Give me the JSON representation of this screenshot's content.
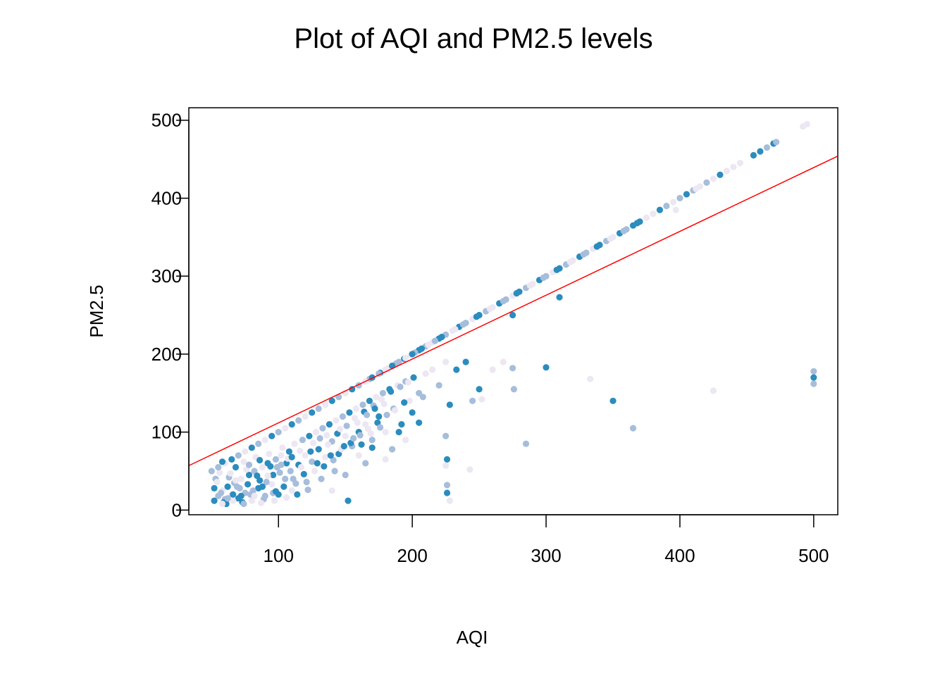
{
  "chart_data": {
    "type": "scatter",
    "title": "Plot of AQI and PM2.5 levels",
    "xlabel": "AQI",
    "ylabel": "PM2.5",
    "xlim": [
      33,
      518
    ],
    "ylim": [
      -6,
      516
    ],
    "x_ticks": [
      100,
      200,
      300,
      400,
      500
    ],
    "y_ticks": [
      0,
      100,
      200,
      300,
      400,
      500
    ],
    "grid": false,
    "legend": "none",
    "colors": [
      "#2b8cbe",
      "#a6bddb",
      "#ece7f2"
    ],
    "trend_line": {
      "color": "#ff0000",
      "x": [
        33,
        518
      ],
      "y": [
        57,
        454
      ]
    },
    "points": [
      [
        52,
        12,
        0
      ],
      [
        55,
        18,
        1
      ],
      [
        58,
        25,
        2
      ],
      [
        60,
        14,
        1
      ],
      [
        62,
        30,
        0
      ],
      [
        65,
        20,
        2
      ],
      [
        67,
        35,
        1
      ],
      [
        70,
        15,
        0
      ],
      [
        72,
        40,
        2
      ],
      [
        75,
        22,
        1
      ],
      [
        78,
        45,
        0
      ],
      [
        80,
        12,
        2
      ],
      [
        82,
        50,
        1
      ],
      [
        85,
        28,
        0
      ],
      [
        88,
        55,
        2
      ],
      [
        90,
        18,
        1
      ],
      [
        92,
        60,
        0
      ],
      [
        95,
        33,
        2
      ],
      [
        98,
        65,
        1
      ],
      [
        100,
        20,
        0
      ],
      [
        102,
        70,
        2
      ],
      [
        105,
        40,
        1
      ],
      [
        108,
        75,
        0
      ],
      [
        110,
        25,
        2
      ],
      [
        53,
        40,
        1
      ],
      [
        56,
        48,
        2
      ],
      [
        59,
        10,
        0
      ],
      [
        63,
        42,
        1
      ],
      [
        66,
        12,
        2
      ],
      [
        68,
        55,
        0
      ],
      [
        71,
        28,
        1
      ],
      [
        74,
        62,
        2
      ],
      [
        77,
        33,
        0
      ],
      [
        79,
        20,
        1
      ],
      [
        83,
        68,
        2
      ],
      [
        86,
        38,
        0
      ],
      [
        89,
        14,
        1
      ],
      [
        93,
        72,
        2
      ],
      [
        96,
        45,
        0
      ],
      [
        99,
        55,
        1
      ],
      [
        103,
        80,
        2
      ],
      [
        106,
        60,
        0
      ],
      [
        109,
        50,
        1
      ],
      [
        112,
        85,
        2
      ],
      [
        115,
        58,
        0
      ],
      [
        118,
        90,
        1
      ],
      [
        120,
        70,
        2
      ],
      [
        123,
        95,
        0
      ],
      [
        125,
        62,
        1
      ],
      [
        128,
        100,
        2
      ],
      [
        130,
        78,
        0
      ],
      [
        133,
        105,
        1
      ],
      [
        135,
        68,
        2
      ],
      [
        138,
        110,
        0
      ],
      [
        140,
        88,
        1
      ],
      [
        143,
        115,
        2
      ],
      [
        145,
        72,
        0
      ],
      [
        148,
        120,
        1
      ],
      [
        150,
        95,
        2
      ],
      [
        153,
        125,
        0
      ],
      [
        155,
        82,
        1
      ],
      [
        158,
        130,
        2
      ],
      [
        160,
        100,
        0
      ],
      [
        163,
        135,
        1
      ],
      [
        165,
        110,
        2
      ],
      [
        168,
        140,
        0
      ],
      [
        170,
        90,
        1
      ],
      [
        173,
        145,
        2
      ],
      [
        175,
        120,
        0
      ],
      [
        178,
        150,
        1
      ],
      [
        180,
        100,
        2
      ],
      [
        183,
        155,
        0
      ],
      [
        186,
        130,
        1
      ],
      [
        189,
        160,
        2
      ],
      [
        192,
        110,
        0
      ],
      [
        195,
        165,
        1
      ],
      [
        198,
        140,
        2
      ],
      [
        201,
        170,
        0
      ],
      [
        205,
        150,
        1
      ],
      [
        210,
        175,
        2
      ],
      [
        140,
        25,
        2
      ],
      [
        150,
        45,
        1
      ],
      [
        152,
        12,
        0
      ],
      [
        160,
        70,
        2
      ],
      [
        165,
        60,
        1
      ],
      [
        170,
        80,
        0
      ],
      [
        180,
        65,
        2
      ],
      [
        185,
        78,
        1
      ],
      [
        190,
        100,
        0
      ],
      [
        195,
        90,
        2
      ],
      [
        200,
        125,
        0
      ],
      [
        205,
        112,
        0
      ],
      [
        208,
        145,
        1
      ],
      [
        215,
        180,
        2
      ],
      [
        220,
        160,
        1
      ],
      [
        225,
        190,
        2
      ],
      [
        228,
        135,
        0
      ],
      [
        233,
        180,
        0
      ],
      [
        240,
        190,
        0
      ],
      [
        245,
        140,
        1
      ],
      [
        250,
        155,
        0
      ],
      [
        252,
        142,
        2
      ],
      [
        260,
        180,
        2
      ],
      [
        268,
        190,
        2
      ],
      [
        275,
        182,
        1
      ],
      [
        276,
        155,
        1
      ],
      [
        300,
        183,
        0
      ],
      [
        333,
        168,
        2
      ],
      [
        350,
        140,
        0
      ],
      [
        365,
        105,
        1
      ],
      [
        425,
        153,
        2
      ],
      [
        500,
        178,
        1
      ],
      [
        500,
        170,
        0
      ],
      [
        500,
        162,
        1
      ],
      [
        225,
        95,
        1
      ],
      [
        226,
        65,
        0
      ],
      [
        226,
        32,
        1
      ],
      [
        226,
        22,
        0
      ],
      [
        228,
        12,
        2
      ],
      [
        225,
        57,
        2
      ],
      [
        243,
        52,
        2
      ],
      [
        285,
        85,
        1
      ],
      [
        275,
        250,
        0
      ],
      [
        310,
        273,
        0
      ],
      [
        397,
        385,
        2
      ],
      [
        50,
        50,
        1
      ],
      [
        52,
        28,
        0
      ],
      [
        54,
        36,
        2
      ],
      [
        57,
        22,
        1
      ],
      [
        61,
        8,
        0
      ],
      [
        64,
        47,
        2
      ],
      [
        69,
        30,
        1
      ],
      [
        73,
        10,
        0
      ],
      [
        76,
        52,
        2
      ],
      [
        81,
        25,
        1
      ],
      [
        84,
        44,
        0
      ],
      [
        87,
        9,
        2
      ],
      [
        91,
        36,
        1
      ],
      [
        94,
        56,
        0
      ],
      [
        97,
        12,
        2
      ],
      [
        101,
        48,
        1
      ],
      [
        104,
        30,
        0
      ],
      [
        107,
        66,
        2
      ],
      [
        111,
        40,
        1
      ],
      [
        114,
        20,
        0
      ],
      [
        117,
        55,
        2
      ],
      [
        121,
        36,
        1
      ],
      [
        124,
        75,
        0
      ],
      [
        127,
        50,
        2
      ],
      [
        131,
        92,
        1
      ],
      [
        134,
        56,
        0
      ],
      [
        137,
        84,
        2
      ],
      [
        141,
        64,
        1
      ],
      [
        144,
        98,
        0
      ],
      [
        147,
        78,
        2
      ],
      [
        151,
        108,
        1
      ],
      [
        154,
        86,
        0
      ],
      [
        157,
        118,
        2
      ],
      [
        161,
        96,
        1
      ],
      [
        164,
        126,
        0
      ],
      [
        167,
        104,
        2
      ],
      [
        171,
        134,
        1
      ],
      [
        174,
        112,
        0
      ],
      [
        177,
        142,
        2
      ],
      [
        181,
        122,
        1
      ],
      [
        184,
        152,
        0
      ],
      [
        187,
        128,
        2
      ],
      [
        191,
        158,
        1
      ],
      [
        194,
        138,
        0
      ],
      [
        197,
        164,
        2
      ],
      [
        205,
        205,
        0
      ],
      [
        210,
        210,
        1
      ],
      [
        215,
        215,
        2
      ],
      [
        220,
        220,
        0
      ],
      [
        225,
        225,
        1
      ],
      [
        230,
        230,
        2
      ],
      [
        235,
        235,
        0
      ],
      [
        240,
        240,
        1
      ],
      [
        245,
        245,
        2
      ],
      [
        250,
        250,
        0
      ],
      [
        255,
        255,
        1
      ],
      [
        260,
        260,
        2
      ],
      [
        265,
        265,
        0
      ],
      [
        270,
        270,
        1
      ],
      [
        275,
        275,
        2
      ],
      [
        280,
        280,
        0
      ],
      [
        285,
        285,
        1
      ],
      [
        290,
        290,
        2
      ],
      [
        295,
        295,
        0
      ],
      [
        300,
        300,
        1
      ],
      [
        305,
        305,
        2
      ],
      [
        310,
        310,
        0
      ],
      [
        315,
        315,
        1
      ],
      [
        320,
        320,
        2
      ],
      [
        325,
        325,
        0
      ],
      [
        330,
        330,
        1
      ],
      [
        335,
        335,
        2
      ],
      [
        340,
        340,
        0
      ],
      [
        345,
        345,
        1
      ],
      [
        350,
        350,
        2
      ],
      [
        355,
        355,
        0
      ],
      [
        360,
        360,
        1
      ],
      [
        365,
        365,
        0
      ],
      [
        370,
        370,
        0
      ],
      [
        375,
        375,
        2
      ],
      [
        385,
        385,
        0
      ],
      [
        390,
        390,
        1
      ],
      [
        395,
        395,
        2
      ],
      [
        410,
        410,
        1
      ],
      [
        415,
        415,
        2
      ],
      [
        420,
        420,
        1
      ],
      [
        425,
        425,
        2
      ],
      [
        430,
        430,
        0
      ],
      [
        435,
        435,
        2
      ],
      [
        440,
        440,
        2
      ],
      [
        445,
        445,
        2
      ],
      [
        455,
        455,
        0
      ],
      [
        460,
        460,
        0
      ],
      [
        465,
        465,
        1
      ],
      [
        470,
        470,
        0
      ],
      [
        472,
        472,
        1
      ],
      [
        492,
        492,
        2
      ],
      [
        495,
        495,
        2
      ],
      [
        168,
        168,
        1
      ],
      [
        176,
        176,
        0
      ],
      [
        182,
        182,
        2
      ],
      [
        188,
        188,
        1
      ],
      [
        194,
        194,
        0
      ],
      [
        199,
        199,
        2
      ],
      [
        202,
        202,
        1
      ],
      [
        207,
        207,
        0
      ],
      [
        212,
        212,
        2
      ],
      [
        217,
        217,
        1
      ],
      [
        222,
        222,
        0
      ],
      [
        232,
        232,
        2
      ],
      [
        238,
        238,
        1
      ],
      [
        248,
        248,
        0
      ],
      [
        258,
        258,
        2
      ],
      [
        268,
        268,
        1
      ],
      [
        278,
        278,
        0
      ],
      [
        288,
        288,
        2
      ],
      [
        298,
        298,
        1
      ],
      [
        308,
        308,
        0
      ],
      [
        318,
        318,
        2
      ],
      [
        328,
        328,
        1
      ],
      [
        338,
        338,
        0
      ],
      [
        348,
        348,
        2
      ],
      [
        358,
        358,
        1
      ],
      [
        368,
        368,
        0
      ],
      [
        380,
        380,
        2
      ],
      [
        400,
        400,
        1
      ],
      [
        405,
        405,
        0
      ],
      [
        412,
        412,
        2
      ],
      [
        55,
        55,
        1
      ],
      [
        60,
        60,
        2
      ],
      [
        65,
        65,
        0
      ],
      [
        70,
        70,
        1
      ],
      [
        75,
        75,
        2
      ],
      [
        80,
        80,
        0
      ],
      [
        85,
        85,
        1
      ],
      [
        90,
        90,
        2
      ],
      [
        95,
        95,
        0
      ],
      [
        100,
        100,
        1
      ],
      [
        105,
        105,
        2
      ],
      [
        110,
        110,
        0
      ],
      [
        115,
        115,
        1
      ],
      [
        120,
        120,
        2
      ],
      [
        125,
        125,
        0
      ],
      [
        130,
        130,
        1
      ],
      [
        135,
        135,
        2
      ],
      [
        140,
        140,
        0
      ],
      [
        145,
        145,
        1
      ],
      [
        150,
        150,
        2
      ],
      [
        155,
        155,
        0
      ],
      [
        160,
        160,
        1
      ],
      [
        165,
        165,
        2
      ],
      [
        170,
        170,
        0
      ],
      [
        175,
        175,
        1
      ],
      [
        180,
        180,
        2
      ],
      [
        185,
        185,
        0
      ],
      [
        190,
        190,
        1
      ],
      [
        195,
        195,
        2
      ],
      [
        200,
        200,
        0
      ],
      [
        58,
        8,
        2
      ],
      [
        66,
        20,
        0
      ],
      [
        74,
        8,
        1
      ],
      [
        82,
        18,
        2
      ],
      [
        88,
        30,
        0
      ],
      [
        96,
        22,
        1
      ],
      [
        58,
        62,
        0
      ],
      [
        62,
        15,
        1
      ],
      [
        68,
        38,
        2
      ],
      [
        72,
        18,
        0
      ],
      [
        78,
        58,
        1
      ],
      [
        86,
        64,
        0
      ],
      [
        92,
        44,
        2
      ],
      [
        98,
        24,
        0
      ],
      [
        102,
        58,
        1
      ],
      [
        106,
        16,
        2
      ],
      [
        110,
        68,
        0
      ],
      [
        113,
        34,
        1
      ],
      [
        116,
        76,
        2
      ],
      [
        119,
        46,
        0
      ],
      [
        122,
        26,
        1
      ],
      [
        126,
        86,
        2
      ],
      [
        129,
        60,
        0
      ],
      [
        132,
        40,
        1
      ],
      [
        136,
        96,
        2
      ],
      [
        139,
        70,
        0
      ],
      [
        142,
        50,
        1
      ],
      [
        146,
        104,
        2
      ],
      [
        149,
        82,
        0
      ],
      [
        156,
        92,
        1
      ],
      [
        159,
        112,
        2
      ],
      [
        162,
        84,
        0
      ],
      [
        166,
        122,
        1
      ],
      [
        169,
        98,
        2
      ],
      [
        172,
        130,
        0
      ],
      [
        176,
        106,
        1
      ],
      [
        179,
        136,
        2
      ]
    ]
  }
}
